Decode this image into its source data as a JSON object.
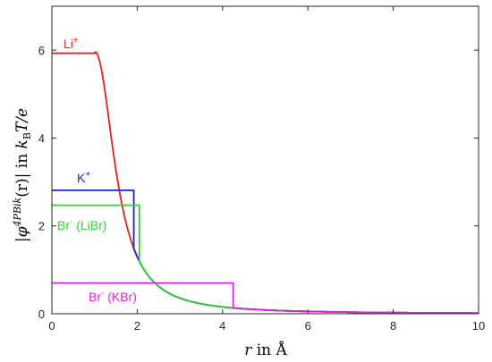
{
  "chart_data": {
    "type": "line",
    "title": "",
    "xlabel": {
      "var": "r",
      "rest": " in Å"
    },
    "ylabel": {
      "prefix": "|",
      "phi": "φ",
      "sup": "4PBik",
      "arg": "(r)",
      "mid": "| in ",
      "k": "k",
      "ksub": "B",
      "tail": "T/e"
    },
    "xlim": [
      0,
      10
    ],
    "ylim": [
      0,
      7
    ],
    "xticks": [
      "0",
      "2",
      "4",
      "6",
      "8",
      "10"
    ],
    "yticks": [
      "0",
      "2",
      "4",
      "6"
    ],
    "grid": false,
    "tail_function": "5.97 / (1 + 3.6 * (r - 1.0)^2.13) for r >= 1",
    "series": [
      {
        "name": "Li+",
        "label_main": "Li",
        "label_sup": "+",
        "color": "#e4211c",
        "plateau": 5.93,
        "cutoff": 1.02
      },
      {
        "name": "K+",
        "label_main": "K",
        "label_sup": "+",
        "color": "#1427c8",
        "plateau": 2.81,
        "cutoff": 1.92
      },
      {
        "name": "Br- (LiBr)",
        "label_main": "Br",
        "label_sup": "-",
        "label_tail": " (LiBr)",
        "color": "#2ed12e",
        "plateau": 2.47,
        "cutoff": 2.05
      },
      {
        "name": "Br- (KBr)",
        "label_main": "Br",
        "label_sup": "-",
        "label_tail": " (KBr)",
        "color": "#e71fdb",
        "plateau": 0.7,
        "cutoff": 4.25
      }
    ]
  }
}
